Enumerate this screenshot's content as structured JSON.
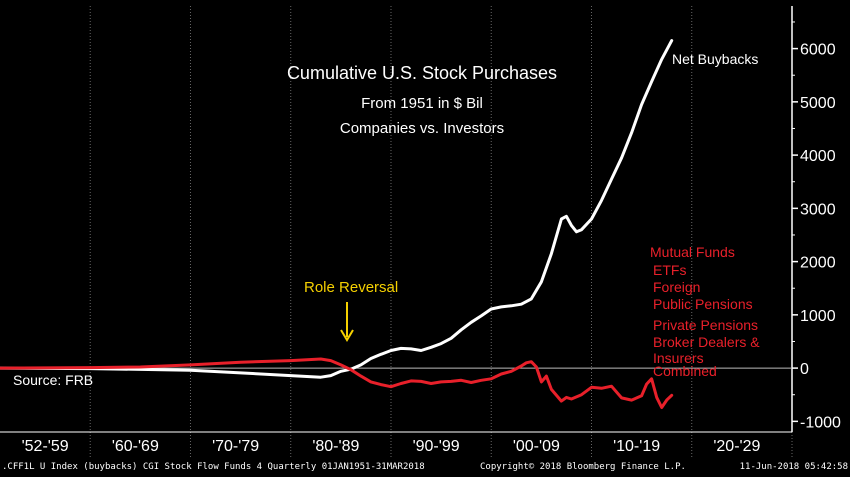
{
  "chart_data": {
    "type": "line",
    "title": "Cumulative U.S. Stock Purchases",
    "subtitle_lines": [
      "From 1951 in $ Bil",
      "Companies vs. Investors"
    ],
    "xlabel": "",
    "ylabel": "",
    "xlim": [
      1951,
      2030
    ],
    "ylim": [
      -1200,
      6800
    ],
    "y_ticks": [
      -1000,
      0,
      1000,
      2000,
      3000,
      4000,
      5000,
      6000
    ],
    "y_tick_labels": [
      "-1000",
      "0",
      "1000",
      "2000",
      "3000",
      "4000",
      "5000",
      "6000"
    ],
    "x_tick_labels": [
      {
        "label": "'52-'59",
        "x": 1955.5
      },
      {
        "label": "'60-'69",
        "x": 1964.5
      },
      {
        "label": "'70-'79",
        "x": 1974.5
      },
      {
        "label": "'80-'89",
        "x": 1984.5
      },
      {
        "label": "'90-'99",
        "x": 1994.5
      },
      {
        "label": "'00-'09",
        "x": 2004.5
      },
      {
        "label": "'10-'19",
        "x": 2014.5
      },
      {
        "label": "'20-'29",
        "x": 2024.5
      }
    ],
    "x_dividers": [
      1960,
      1970,
      1980,
      1990,
      2000,
      2010,
      2020,
      2030
    ],
    "zero_line": true,
    "grid": false,
    "series": [
      {
        "name": "Net Buybacks",
        "color": "#ffffff",
        "points": [
          [
            1951,
            0
          ],
          [
            1960,
            -10
          ],
          [
            1970,
            -40
          ],
          [
            1975,
            -90
          ],
          [
            1980,
            -140
          ],
          [
            1983,
            -170
          ],
          [
            1984,
            -140
          ],
          [
            1985,
            -60
          ],
          [
            1986,
            -20
          ],
          [
            1987,
            60
          ],
          [
            1988,
            180
          ],
          [
            1989,
            260
          ],
          [
            1990,
            330
          ],
          [
            1991,
            370
          ],
          [
            1992,
            360
          ],
          [
            1993,
            330
          ],
          [
            1994,
            390
          ],
          [
            1995,
            460
          ],
          [
            1996,
            560
          ],
          [
            1997,
            720
          ],
          [
            1998,
            860
          ],
          [
            1999,
            980
          ],
          [
            2000,
            1110
          ],
          [
            2001,
            1150
          ],
          [
            2002,
            1170
          ],
          [
            2003,
            1200
          ],
          [
            2004,
            1300
          ],
          [
            2005,
            1620
          ],
          [
            2006,
            2150
          ],
          [
            2007,
            2800
          ],
          [
            2007.5,
            2850
          ],
          [
            2008,
            2680
          ],
          [
            2008.5,
            2560
          ],
          [
            2009,
            2600
          ],
          [
            2010,
            2800
          ],
          [
            2011,
            3150
          ],
          [
            2012,
            3550
          ],
          [
            2013,
            3950
          ],
          [
            2014,
            4420
          ],
          [
            2015,
            4950
          ],
          [
            2016,
            5380
          ],
          [
            2017,
            5800
          ],
          [
            2018,
            6150
          ]
        ]
      },
      {
        "name": "Combined",
        "color": "#e8202a",
        "points": [
          [
            1951,
            0
          ],
          [
            1960,
            10
          ],
          [
            1965,
            20
          ],
          [
            1970,
            60
          ],
          [
            1975,
            110
          ],
          [
            1980,
            140
          ],
          [
            1983,
            170
          ],
          [
            1984,
            140
          ],
          [
            1985,
            60
          ],
          [
            1986,
            -30
          ],
          [
            1987,
            -150
          ],
          [
            1988,
            -260
          ],
          [
            1989,
            -310
          ],
          [
            1990,
            -350
          ],
          [
            1991,
            -290
          ],
          [
            1992,
            -240
          ],
          [
            1993,
            -250
          ],
          [
            1994,
            -290
          ],
          [
            1995,
            -260
          ],
          [
            1996,
            -250
          ],
          [
            1997,
            -230
          ],
          [
            1998,
            -270
          ],
          [
            1999,
            -230
          ],
          [
            2000,
            -200
          ],
          [
            2001,
            -110
          ],
          [
            2002,
            -60
          ],
          [
            2003,
            40
          ],
          [
            2003.5,
            100
          ],
          [
            2004,
            120
          ],
          [
            2004.5,
            20
          ],
          [
            2005,
            -260
          ],
          [
            2005.5,
            -150
          ],
          [
            2006,
            -400
          ],
          [
            2007,
            -620
          ],
          [
            2007.5,
            -550
          ],
          [
            2008,
            -580
          ],
          [
            2009,
            -500
          ],
          [
            2010,
            -360
          ],
          [
            2011,
            -380
          ],
          [
            2012,
            -340
          ],
          [
            2013,
            -560
          ],
          [
            2014,
            -600
          ],
          [
            2015,
            -520
          ],
          [
            2015.5,
            -300
          ],
          [
            2016,
            -200
          ],
          [
            2016.5,
            -550
          ],
          [
            2017,
            -740
          ],
          [
            2017.5,
            -600
          ],
          [
            2018,
            -510
          ]
        ]
      }
    ],
    "series_labels": {
      "net_buybacks": "Net Buybacks",
      "investors": [
        "Mutual Funds",
        "ETFs",
        "Foreign",
        "Public Pensions",
        "Private Pensions",
        "Broker Dealers &",
        "Insurers",
        "Combined"
      ]
    },
    "annotations": {
      "role_reversal": "Role Reversal",
      "source": "Source: FRB"
    },
    "colors": {
      "background": "#000000",
      "title": "#ffffff",
      "buybacks": "#ffffff",
      "investors": "#e8202a",
      "role_reversal": "#f5d000",
      "axis": "#ffffff",
      "zero_line": "#cccccc"
    }
  },
  "footer": {
    "left": ".CFF1L U Index (buybacks) CGI Stock Flow Funds 4  Quarterly 01JAN1951-31MAR2018",
    "center": "Copyright© 2018 Bloomberg Finance L.P.",
    "right": "11-Jun-2018 05:42:58"
  }
}
